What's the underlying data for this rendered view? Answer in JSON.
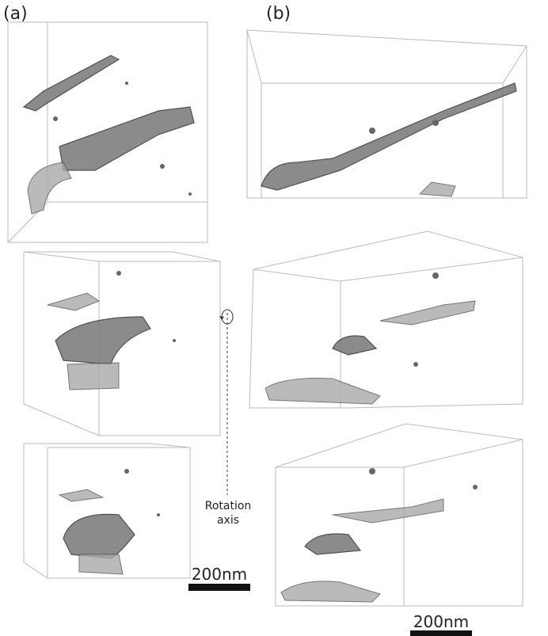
{
  "panels": [
    {
      "label": "(a)",
      "scale_bar": "200nm"
    },
    {
      "label": "(b)",
      "scale_bar": "200nm"
    }
  ],
  "rotation_axis": {
    "label": [
      "Rotation",
      "axis"
    ]
  }
}
